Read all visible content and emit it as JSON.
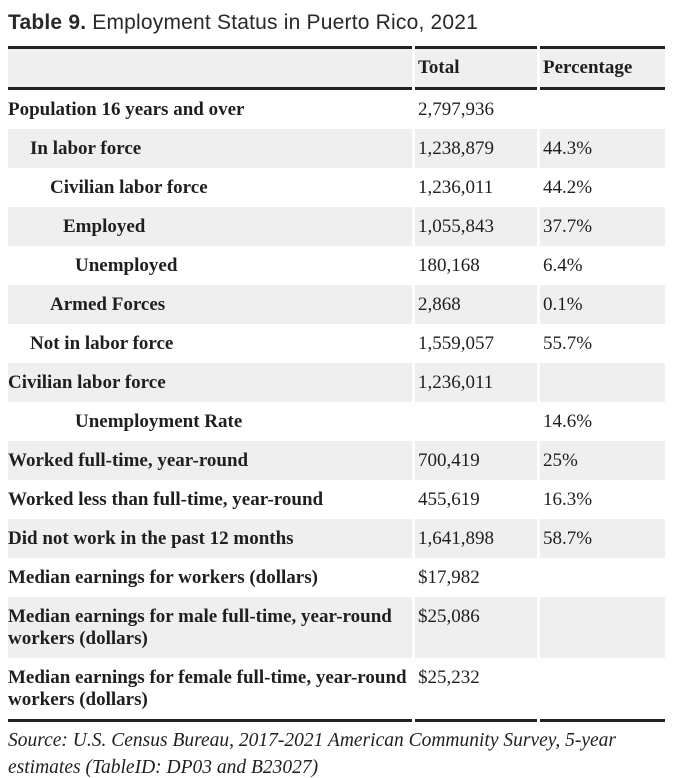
{
  "title": {
    "prefix": "Table 9.",
    "text": "Employment Status in Puerto Rico, 2021"
  },
  "table": {
    "header": {
      "label": "",
      "total": "Total",
      "percentage": "Percentage"
    },
    "rows": [
      {
        "label": "Population 16 years and over",
        "indent": 0,
        "total": "2,797,936",
        "percentage": ""
      },
      {
        "label": "In labor force",
        "indent": 1,
        "total": "1,238,879",
        "percentage": "44.3%"
      },
      {
        "label": "Civilian labor force",
        "indent": 2,
        "total": "1,236,011",
        "percentage": "44.2%"
      },
      {
        "label": "Employed",
        "indent": 3,
        "total": "1,055,843",
        "percentage": "37.7%"
      },
      {
        "label": "Unemployed",
        "indent": 4,
        "total": "180,168",
        "percentage": "6.4%"
      },
      {
        "label": "Armed Forces",
        "indent": 2,
        "total": "2,868",
        "percentage": "0.1%"
      },
      {
        "label": "Not in labor force",
        "indent": 1,
        "total": "1,559,057",
        "percentage": "55.7%"
      },
      {
        "label": "Civilian labor force",
        "indent": 0,
        "total": "1,236,011",
        "percentage": ""
      },
      {
        "label": "Unemployment Rate",
        "indent": 4,
        "total": "",
        "percentage": "14.6%"
      },
      {
        "label": "Worked full-time, year-round",
        "indent": 0,
        "total": "700,419",
        "percentage": "25%"
      },
      {
        "label": "Worked less than full-time, year-round",
        "indent": 0,
        "total": "455,619",
        "percentage": "16.3%"
      },
      {
        "label": "Did not work in the past 12 months",
        "indent": 0,
        "total": "1,641,898",
        "percentage": "58.7%"
      },
      {
        "label": "Median earnings for workers (dollars)",
        "indent": 0,
        "total": "$17,982",
        "percentage": ""
      },
      {
        "label": "Median earnings for male full-time, year-round workers (dollars)",
        "indent": 0,
        "total": "$25,086",
        "percentage": ""
      },
      {
        "label": "Median earnings for female full-time, year-round workers (dollars)",
        "indent": 0,
        "total": "$25,232",
        "percentage": ""
      }
    ]
  },
  "source": "Source: U.S. Census Bureau, 2017-2021 American Community Survey, 5-year estimates (TableID: DP03 and B23027)",
  "colors": {
    "stripe": "#efefef",
    "rule": "#222222",
    "text": "#1f1f1f",
    "title_text": "#26282b"
  }
}
